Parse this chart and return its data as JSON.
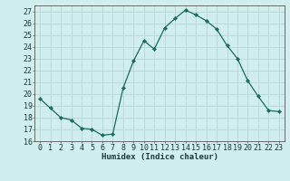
{
  "x": [
    0,
    1,
    2,
    3,
    4,
    5,
    6,
    7,
    8,
    9,
    10,
    11,
    12,
    13,
    14,
    15,
    16,
    17,
    18,
    19,
    20,
    21,
    22,
    23
  ],
  "y": [
    19.6,
    18.8,
    18.0,
    17.8,
    17.1,
    17.0,
    16.5,
    16.6,
    20.5,
    22.8,
    24.5,
    23.8,
    25.6,
    26.4,
    27.1,
    26.7,
    26.2,
    25.5,
    24.1,
    23.0,
    21.1,
    19.8,
    18.6,
    18.5
  ],
  "line_color": "#1a6b5a",
  "marker": "D",
  "marker_size": 2.2,
  "bg_color": "#d0eeee",
  "grid_major_color": "#b8d4d4",
  "grid_minor_color": "#c4e0e0",
  "xlabel": "Humidex (Indice chaleur)",
  "xlim": [
    -0.5,
    23.5
  ],
  "ylim": [
    16,
    27.5
  ],
  "yticks": [
    16,
    17,
    18,
    19,
    20,
    21,
    22,
    23,
    24,
    25,
    26,
    27
  ],
  "xticks": [
    0,
    1,
    2,
    3,
    4,
    5,
    6,
    7,
    8,
    9,
    10,
    11,
    12,
    13,
    14,
    15,
    16,
    17,
    18,
    19,
    20,
    21,
    22,
    23
  ],
  "label_fontsize": 6.5,
  "tick_fontsize": 6.0
}
